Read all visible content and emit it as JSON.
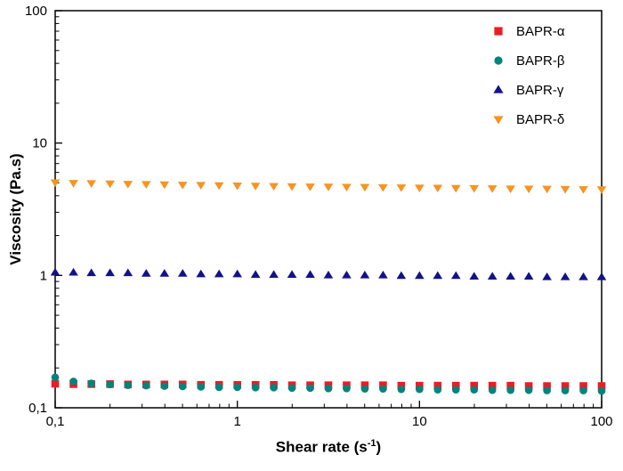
{
  "chart_data": {
    "type": "scatter",
    "title": "",
    "xlabel": "Shear rate (s^-1)",
    "xlabel_pre": "Shear rate (s",
    "xlabel_sup": "-1",
    "xlabel_post": ")",
    "ylabel": "Viscosity (Pa.s)",
    "x_scale": "log",
    "y_scale": "log",
    "xlim": [
      0.1,
      100
    ],
    "ylim": [
      0.1,
      100
    ],
    "x_tick_labels": [
      "0,1",
      "1",
      "10",
      "100"
    ],
    "y_tick_labels": [
      "0,1",
      "1",
      "10",
      "100"
    ],
    "grid": false,
    "legend_position": "top-right-inside",
    "frame_color": "#000000",
    "x": [
      0.1,
      0.126,
      0.158,
      0.2,
      0.251,
      0.316,
      0.398,
      0.501,
      0.631,
      0.794,
      1,
      1.259,
      1.585,
      1.995,
      2.512,
      3.162,
      3.981,
      5.012,
      6.31,
      7.943,
      10,
      12.59,
      15.85,
      19.95,
      25.12,
      31.62,
      39.81,
      50.12,
      63.1,
      79.43,
      100
    ],
    "series": [
      {
        "name": "BAPR-α",
        "marker": "square",
        "color": "#ed1c24",
        "values": [
          0.152,
          0.151,
          0.151,
          0.151,
          0.15,
          0.15,
          0.15,
          0.15,
          0.149,
          0.149,
          0.149,
          0.149,
          0.149,
          0.148,
          0.148,
          0.148,
          0.148,
          0.148,
          0.148,
          0.147,
          0.147,
          0.147,
          0.147,
          0.147,
          0.147,
          0.147,
          0.146,
          0.146,
          0.146,
          0.146,
          0.146
        ]
      },
      {
        "name": "BAPR-β",
        "marker": "circle",
        "color": "#00847c",
        "values": [
          0.17,
          0.158,
          0.153,
          0.15,
          0.148,
          0.147,
          0.146,
          0.145,
          0.144,
          0.143,
          0.143,
          0.142,
          0.142,
          0.141,
          0.141,
          0.14,
          0.14,
          0.139,
          0.139,
          0.138,
          0.138,
          0.137,
          0.137,
          0.137,
          0.136,
          0.136,
          0.136,
          0.135,
          0.135,
          0.135,
          0.134
        ]
      },
      {
        "name": "BAPR-γ",
        "marker": "triangle-up",
        "color": "#12128a",
        "values": [
          1.05,
          1.05,
          1.04,
          1.04,
          1.04,
          1.03,
          1.03,
          1.03,
          1.02,
          1.02,
          1.02,
          1.01,
          1.01,
          1.01,
          1.01,
          1.0,
          1.0,
          1.0,
          1.0,
          0.99,
          0.99,
          0.99,
          0.99,
          0.98,
          0.98,
          0.98,
          0.98,
          0.97,
          0.97,
          0.97,
          0.97
        ]
      },
      {
        "name": "BAPR-δ",
        "marker": "triangle-down",
        "color": "#f79421",
        "values": [
          5.05,
          5.0,
          4.98,
          4.95,
          4.92,
          4.9,
          4.88,
          4.85,
          4.83,
          4.8,
          4.78,
          4.76,
          4.74,
          4.72,
          4.7,
          4.69,
          4.67,
          4.66,
          4.64,
          4.63,
          4.61,
          4.6,
          4.58,
          4.57,
          4.56,
          4.54,
          4.53,
          4.52,
          4.5,
          4.49,
          4.48
        ]
      }
    ]
  }
}
